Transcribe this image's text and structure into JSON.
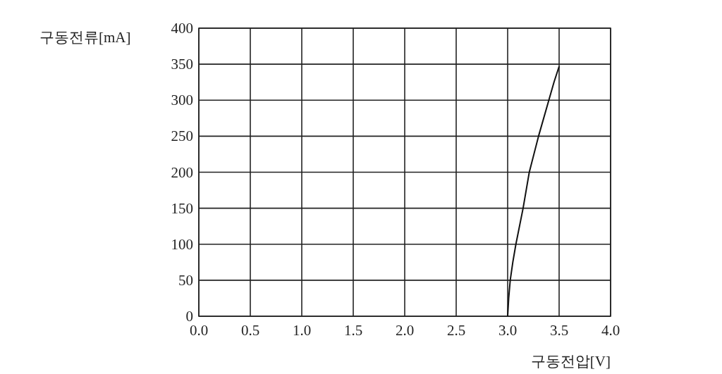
{
  "chart_data": {
    "type": "line",
    "xlabel": "구동전압[V]",
    "ylabel": "구동전류[mA]",
    "x": [
      3.0,
      3.01,
      3.025,
      3.05,
      3.08,
      3.15,
      3.21,
      3.3,
      3.4,
      3.45,
      3.5
    ],
    "series": [
      {
        "color": "#111111",
        "values": [
          0,
          25,
          50,
          75,
          100,
          150,
          200,
          250,
          300,
          325,
          347
        ]
      }
    ],
    "xlim": [
      0,
      4
    ],
    "xticks": [
      {
        "value": 0,
        "label": "0.0"
      },
      {
        "value": 0.5,
        "label": "0.5"
      },
      {
        "value": 1,
        "label": "1.0"
      },
      {
        "value": 1.5,
        "label": "1.5"
      },
      {
        "value": 2,
        "label": "2.0"
      },
      {
        "value": 2.5,
        "label": "2.5"
      },
      {
        "value": 3,
        "label": "3.0"
      },
      {
        "value": 3.5,
        "label": "3.5"
      },
      {
        "value": 4,
        "label": "4.0"
      }
    ],
    "ylim": [
      0,
      400
    ],
    "yticks": [
      0,
      50,
      100,
      150,
      200,
      250,
      300,
      350,
      400
    ],
    "grid": true,
    "marker": "none",
    "line_style": "solid"
  }
}
